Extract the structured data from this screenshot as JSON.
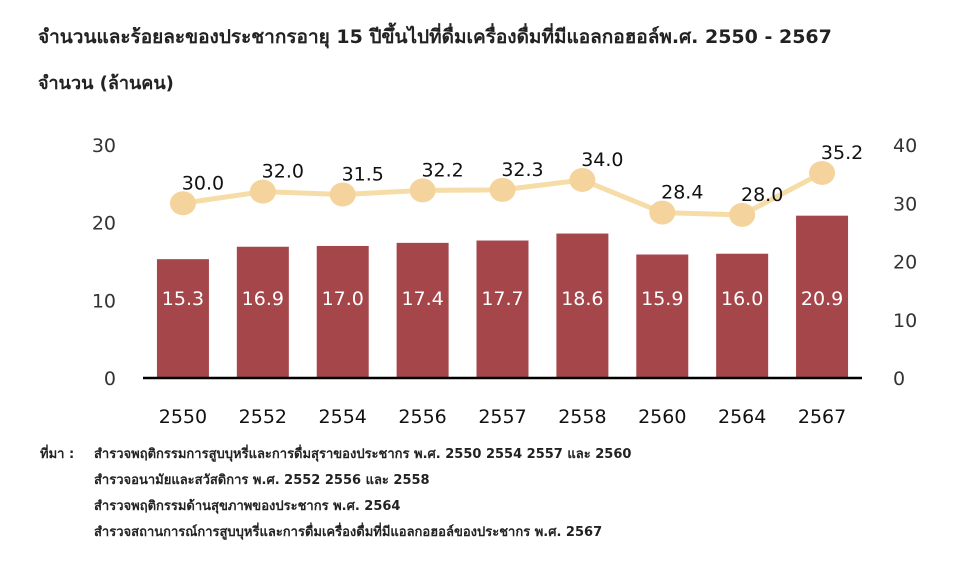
{
  "header": {
    "title": "จำนวนและร้อยละของประชากรอายุ 15 ปีขึ้นไปที่ดื่มเครื่องดื่มที่มีแอลกอฮอล์พ.ศ. 2550 - 2567",
    "unit_label": "จำนวน (ล้านคน)"
  },
  "colors": {
    "bar": "#a5464b",
    "line": "#f6dca6",
    "marker": "#f4d49c",
    "highlight_label": "#cc0000",
    "axis": "#000000"
  },
  "chart_data": {
    "type": "bar",
    "categories": [
      "2550",
      "2552",
      "2554",
      "2556",
      "2557",
      "2558",
      "2560",
      "2564",
      "2567"
    ],
    "series": [
      {
        "values": [
          15.3,
          16.9,
          17.0,
          17.4,
          17.7,
          18.6,
          15.9,
          16.0,
          20.9
        ],
        "axis": "left",
        "kind": "bar"
      },
      {
        "values": [
          30.0,
          32.0,
          31.5,
          32.2,
          32.3,
          34.0,
          28.4,
          28.0,
          35.2
        ],
        "axis": "right",
        "kind": "line"
      }
    ],
    "bar_labels": [
      "15.3",
      "16.9",
      "17.0",
      "17.4",
      "17.7",
      "18.6",
      "15.9",
      "16.0",
      "20.9"
    ],
    "line_labels": [
      "30.0",
      "32.0",
      "31.5",
      "32.2",
      "32.3",
      "34.0",
      "28.4",
      "28.0",
      "35.2"
    ],
    "highlight_index": 8,
    "ylim_left": [
      0,
      30
    ],
    "yticks_left": [
      "0",
      "10",
      "20",
      "30"
    ],
    "ylim_right": [
      0,
      40
    ],
    "yticks_right": [
      "0",
      "10",
      "20",
      "30",
      "40"
    ],
    "grid": false,
    "legend": "none"
  },
  "source": {
    "label": "ที่มา :",
    "lines": [
      "สำรวจพฤติกรรมการสูบบุหรี่และการดื่มสุราของประชากร พ.ศ. 2550 2554 2557 และ 2560",
      "สำรวจอนามัยและสวัสดิการ พ.ศ. 2552 2556 และ 2558",
      "สำรวจพฤติกรรมด้านสุขภาพของประชากร พ.ศ. 2564",
      "สำรวจสถานการณ์การสูบบุหรี่และการดื่มเครื่องดื่มที่มีแอลกอฮอล์ของประชากร พ.ศ. 2567"
    ]
  }
}
